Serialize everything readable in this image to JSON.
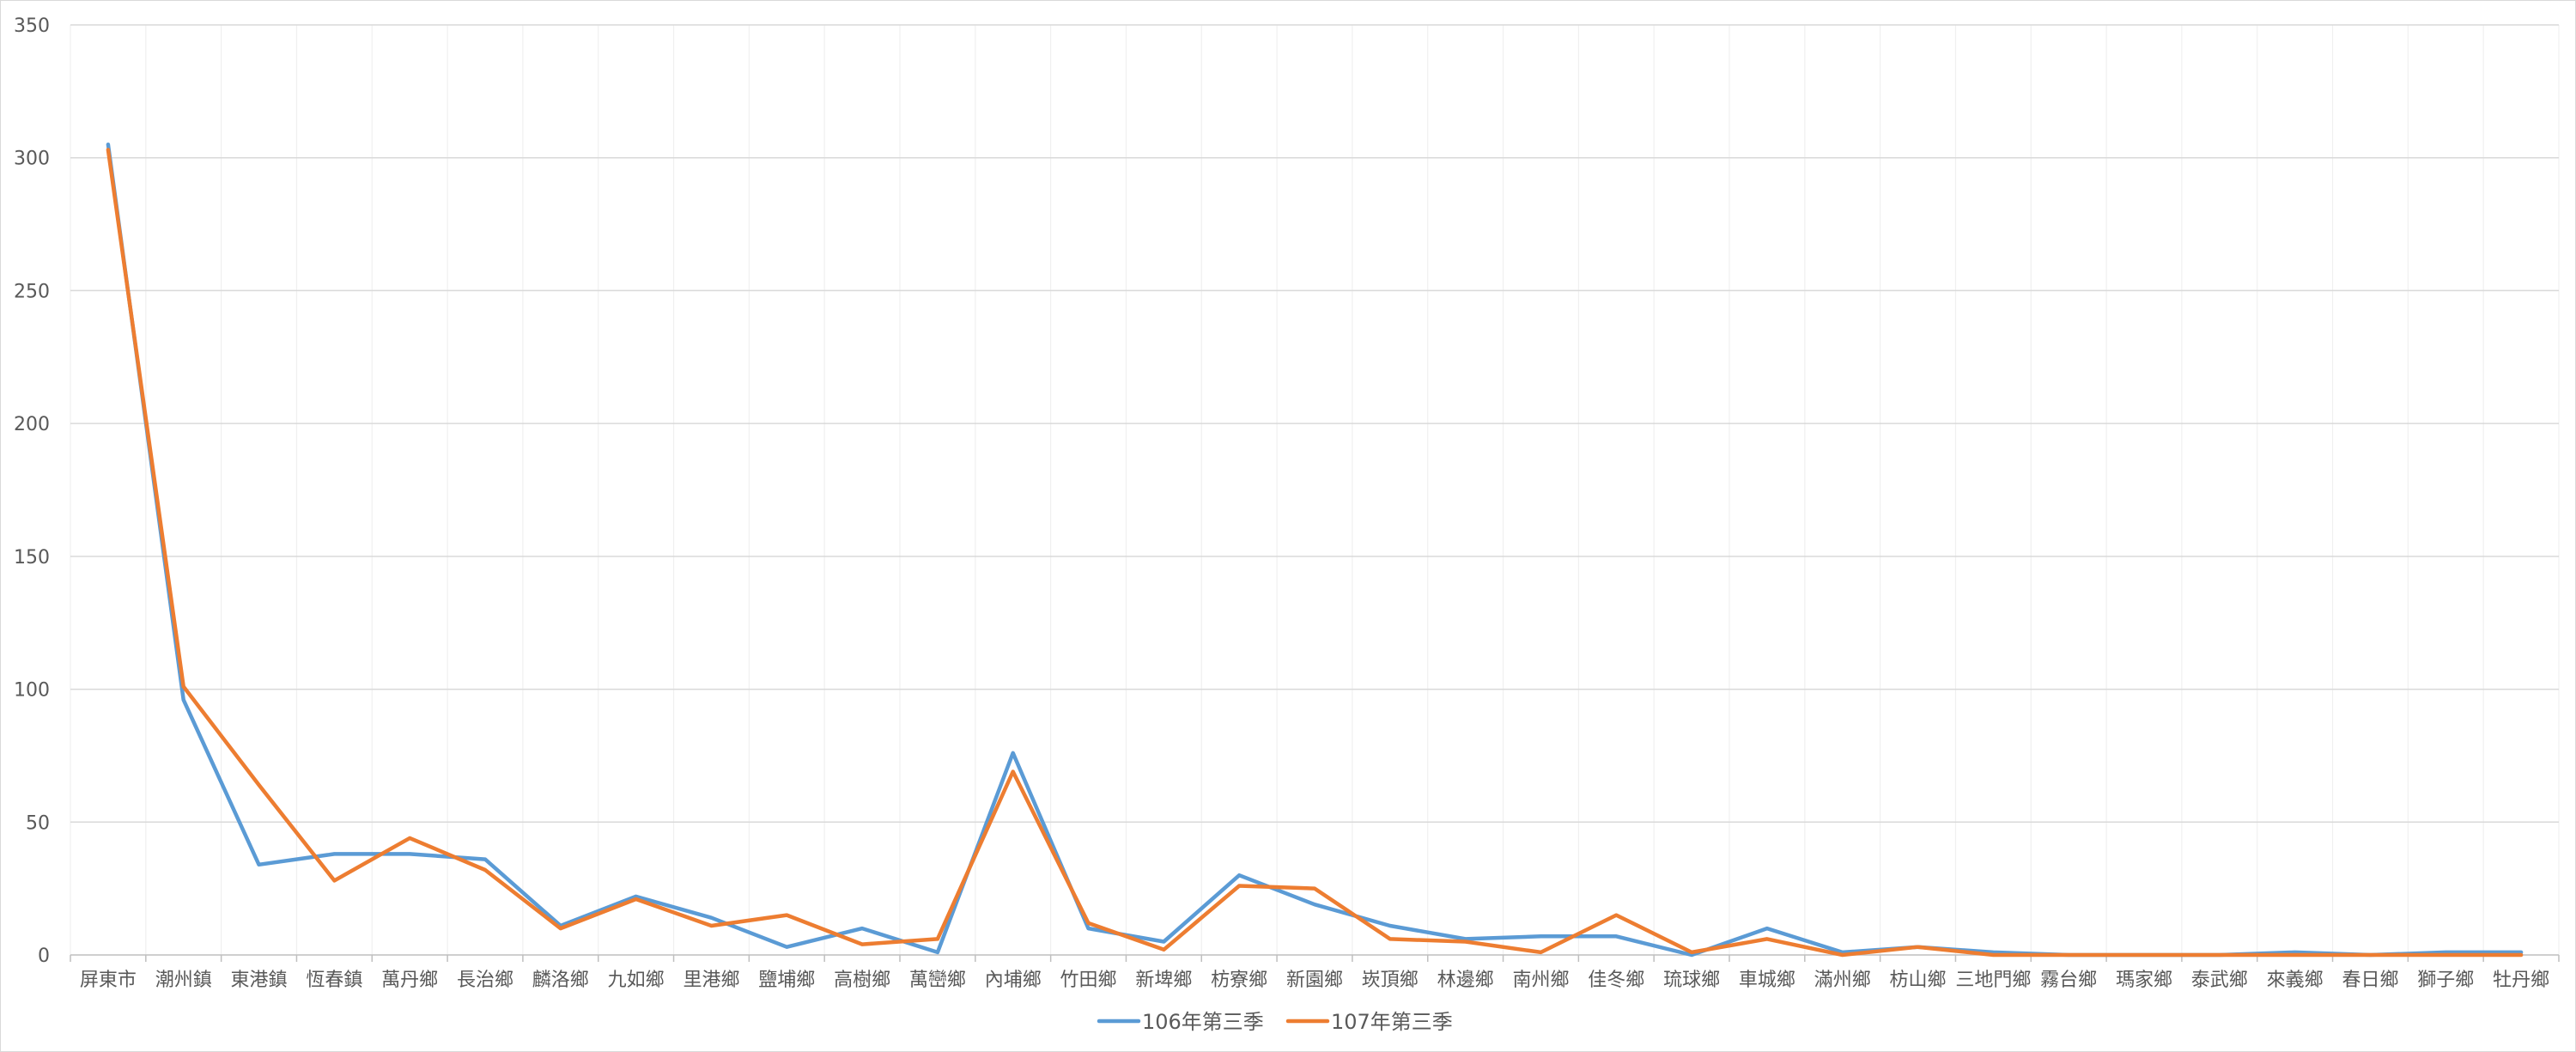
{
  "chart_data": {
    "type": "line",
    "categories": [
      "屏東市",
      "潮州鎮",
      "東港鎮",
      "恆春鎮",
      "萬丹鄉",
      "長治鄉",
      "麟洛鄉",
      "九如鄉",
      "里港鄉",
      "鹽埔鄉",
      "高樹鄉",
      "萬巒鄉",
      "內埔鄉",
      "竹田鄉",
      "新埤鄉",
      "枋寮鄉",
      "新園鄉",
      "崁頂鄉",
      "林邊鄉",
      "南州鄉",
      "佳冬鄉",
      "琉球鄉",
      "車城鄉",
      "滿州鄉",
      "枋山鄉",
      "三地門鄉",
      "霧台鄉",
      "瑪家鄉",
      "泰武鄉",
      "來義鄉",
      "春日鄉",
      "獅子鄉",
      "牡丹鄉"
    ],
    "series": [
      {
        "name": "106年第三季",
        "color": "#5b9bd5",
        "values": [
          305,
          96,
          34,
          38,
          38,
          36,
          11,
          22,
          14,
          3,
          10,
          1,
          76,
          10,
          5,
          30,
          19,
          11,
          6,
          7,
          7,
          0,
          10,
          1,
          3,
          1,
          0,
          0,
          0,
          1,
          0,
          1,
          1
        ]
      },
      {
        "name": "107年第三季",
        "color": "#ed7d31",
        "values": [
          303,
          101,
          64,
          28,
          44,
          32,
          10,
          21,
          11,
          15,
          4,
          6,
          69,
          12,
          2,
          26,
          25,
          6,
          5,
          1,
          15,
          1,
          6,
          0,
          3,
          0,
          0,
          0,
          0,
          0,
          0,
          0,
          0
        ]
      }
    ],
    "ylim": [
      0,
      350
    ],
    "yticks": [
      "0",
      "50",
      "100",
      "150",
      "200",
      "250",
      "300",
      "350"
    ],
    "grid": true,
    "legend_position": "bottom-center"
  }
}
